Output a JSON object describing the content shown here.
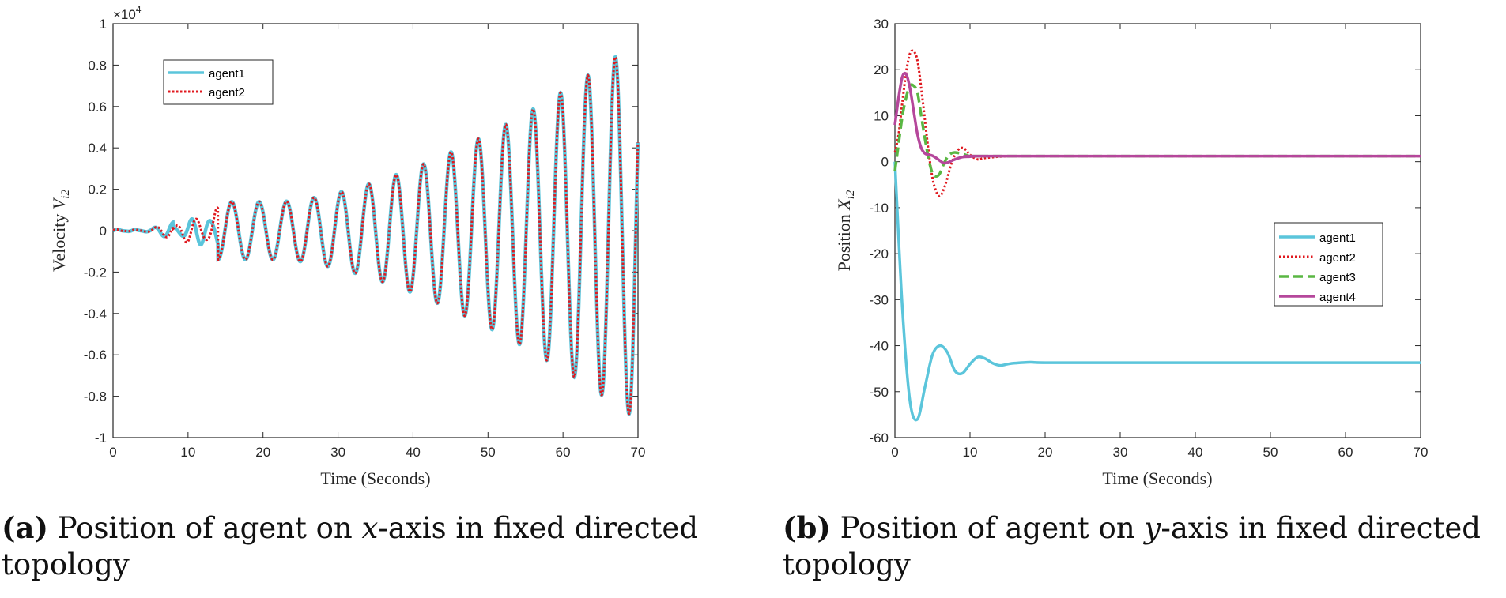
{
  "chart_data": [
    {
      "type": "line",
      "panel": "a",
      "title": "",
      "xlabel": "Time (Seconds)",
      "ylabel_text": "Velocity",
      "ylabel_var": "V",
      "ylabel_sub": "i2",
      "exponent_label": "×10",
      "exponent_power": "4",
      "xlim": [
        0,
        70
      ],
      "ylim": [
        -1,
        1
      ],
      "x_ticks": [
        "0",
        "10",
        "20",
        "30",
        "40",
        "50",
        "60",
        "70"
      ],
      "y_ticks": [
        "-1",
        "-0.8",
        "-0.6",
        "-0.4",
        "-0.2",
        "0",
        "0.2",
        "0.4",
        "0.6",
        "0.8",
        "1"
      ],
      "legend_position": "top-left",
      "series": [
        {
          "name": "agent1",
          "color": "#5bc5db",
          "style": "solid",
          "description": "growing oscillation",
          "peaks_x": [
            14,
            17.7,
            21.5,
            25.5,
            30,
            33,
            37,
            41,
            44.5,
            48,
            51,
            55,
            58,
            61,
            64.5,
            67,
            68.8
          ],
          "peaks_y": [
            0.12,
            0.13,
            0.14,
            0.15,
            0.2,
            0.23,
            0.26,
            0.29,
            0.33,
            0.43,
            0.48,
            0.53,
            0.61,
            0.69,
            0.78,
            0.88,
            -0.89
          ]
        },
        {
          "name": "agent2",
          "color": "#e0191f",
          "style": "dotted",
          "description": "growing oscillation, overlapping agent1"
        }
      ]
    },
    {
      "type": "line",
      "panel": "b",
      "title": "",
      "xlabel": "Time (Seconds)",
      "ylabel_text": "Position",
      "ylabel_var": "X",
      "ylabel_sub": "i2",
      "xlim": [
        0,
        70
      ],
      "ylim": [
        -60,
        30
      ],
      "x_ticks": [
        "0",
        "10",
        "20",
        "30",
        "40",
        "50",
        "60",
        "70"
      ],
      "y_ticks": [
        "-60",
        "-50",
        "-40",
        "-30",
        "-20",
        "-10",
        "0",
        "10",
        "20",
        "30"
      ],
      "legend_position": "right-middle",
      "series": [
        {
          "name": "agent1",
          "color": "#5bc5db",
          "style": "solid",
          "x": [
            0,
            1,
            2,
            3,
            4,
            5,
            6,
            7,
            8,
            9,
            10,
            11,
            12,
            13,
            14,
            15,
            16,
            18,
            20,
            30,
            40,
            50,
            60,
            70
          ],
          "y": [
            0,
            -32,
            -52,
            -56,
            -49,
            -42,
            -40,
            -41.5,
            -45.5,
            -46,
            -44,
            -42.5,
            -42.8,
            -43.8,
            -44.3,
            -44,
            -43.8,
            -43.6,
            -43.7,
            -43.7,
            -43.7,
            -43.7,
            -43.7,
            -43.7
          ]
        },
        {
          "name": "agent2",
          "color": "#e0191f",
          "style": "dotted",
          "x": [
            0,
            0.5,
            1,
            1.5,
            2,
            2.5,
            3,
            3.5,
            4,
            4.5,
            5,
            5.5,
            6,
            6.5,
            7,
            7.5,
            8,
            8.5,
            9,
            9.5,
            10,
            11,
            12,
            14,
            16,
            18,
            70
          ],
          "y": [
            2,
            6,
            13,
            19.5,
            23.5,
            24,
            22,
            16,
            9,
            2,
            -3.5,
            -6.5,
            -7.5,
            -6,
            -3.5,
            -0.5,
            1.5,
            2.7,
            3,
            2.5,
            1.5,
            0.5,
            0.8,
            1.1,
            1.2,
            1.2,
            1.2
          ]
        },
        {
          "name": "agent3",
          "color": "#5ab743",
          "style": "dashed",
          "x": [
            0,
            0.5,
            1,
            1.5,
            2,
            2.5,
            3,
            3.5,
            4,
            4.5,
            5,
            5.5,
            6,
            6.5,
            7,
            7.5,
            8,
            9,
            10,
            11,
            12,
            14,
            70
          ],
          "y": [
            -2,
            4,
            10,
            14,
            16.5,
            16.5,
            15,
            10,
            5,
            0.5,
            -2.5,
            -3.2,
            -2.5,
            -0.5,
            1,
            1.8,
            2,
            1.7,
            1.2,
            1.2,
            1.2,
            1.2,
            1.2
          ]
        },
        {
          "name": "agent4",
          "color": "#b5479b",
          "style": "solid",
          "x": [
            0,
            0.5,
            1,
            1.5,
            2,
            2.5,
            3,
            3.5,
            4,
            4.5,
            5,
            5.5,
            6,
            6.5,
            7,
            8,
            9,
            10,
            11,
            12,
            14,
            70
          ],
          "y": [
            8,
            14,
            18.5,
            19,
            16,
            11,
            6,
            3,
            1.8,
            1.5,
            1.3,
            0.8,
            0.2,
            -0.3,
            -0.2,
            0.5,
            1,
            1.1,
            1.2,
            1.2,
            1.2,
            1.2
          ]
        }
      ]
    }
  ],
  "captions": [
    {
      "label": "(a)",
      "text_before": "Position of agent on",
      "axis_var": "x",
      "text_after": "-axis in fixed directed",
      "line2": "topology"
    },
    {
      "label": "(b)",
      "text_before": "Position of agent on",
      "axis_var": "y",
      "text_after": "-axis in fixed directed",
      "line2": "topology"
    }
  ]
}
